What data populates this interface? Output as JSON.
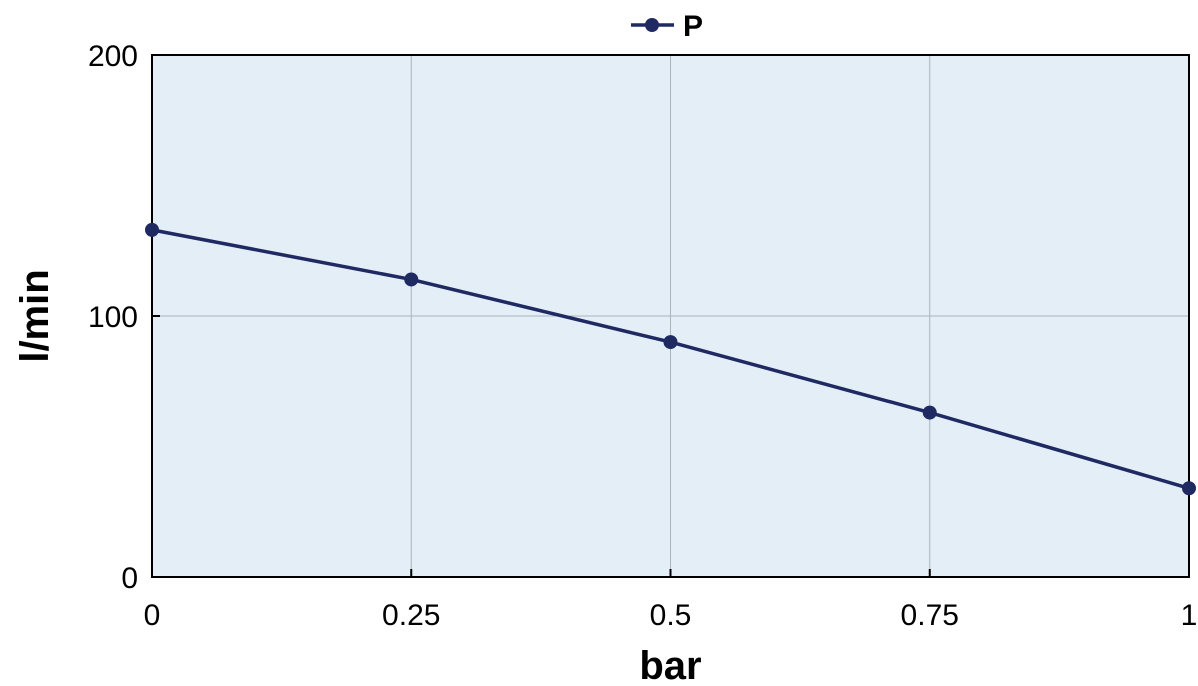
{
  "chart_data": {
    "type": "line",
    "title": "",
    "xlabel": "bar",
    "ylabel": "l/min",
    "x": [
      0,
      0.25,
      0.5,
      0.75,
      1
    ],
    "x_tick_labels": [
      "0",
      "0.25",
      "0.5",
      "0.75",
      "1"
    ],
    "y_tick_values": [
      0,
      100,
      200
    ],
    "y_tick_labels": [
      "0",
      "100",
      "200"
    ],
    "xlim": [
      0,
      1
    ],
    "ylim": [
      0,
      200
    ],
    "grid": true,
    "legend_position": "top-center",
    "series": [
      {
        "name": "P",
        "values": [
          133,
          114,
          90,
          63,
          34
        ],
        "color": "#1f2a63",
        "marker": "circle"
      }
    ],
    "colors": {
      "plot_background": "#e4eef6",
      "grid": "#a9b4bd",
      "axis": "#000000"
    }
  }
}
